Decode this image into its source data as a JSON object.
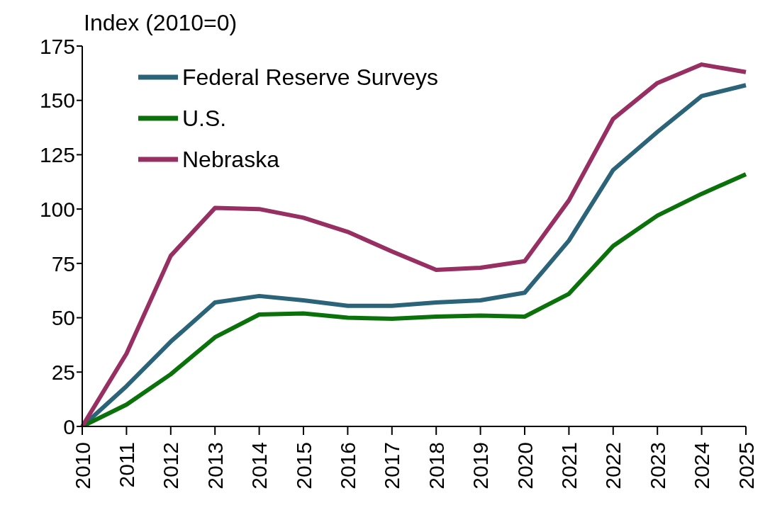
{
  "chart_data": {
    "type": "line",
    "ylabel": "Index (2010=0)",
    "categories": [
      "2010",
      "2011",
      "2012",
      "2013",
      "2014",
      "2015",
      "2016",
      "2017",
      "2018",
      "2019",
      "2020",
      "2021",
      "2022",
      "2023",
      "2024",
      "2025"
    ],
    "series": [
      {
        "name": "Federal Reserve Surveys",
        "color": "#2b6379",
        "values": [
          0,
          18.5,
          39,
          57,
          60,
          58,
          55.5,
          55.5,
          57,
          58,
          61.5,
          85.5,
          118,
          135.5,
          152,
          157
        ]
      },
      {
        "name": "U.S.",
        "color": "#0b720b",
        "values": [
          0,
          10,
          24,
          41,
          51.5,
          52,
          50,
          49.5,
          50.5,
          51,
          50.5,
          61,
          83,
          97,
          107,
          116
        ]
      },
      {
        "name": "Nebraska",
        "color": "#982f62",
        "values": [
          0,
          33.5,
          78.5,
          100.5,
          100,
          96,
          89.5,
          80.5,
          72,
          73,
          76,
          104,
          141.5,
          158,
          166.5,
          163
        ]
      }
    ],
    "ylim": [
      0,
      175
    ],
    "yticks": [
      0,
      25,
      50,
      75,
      100,
      125,
      150,
      175
    ],
    "grid": false,
    "legend": "top left",
    "marker": "none",
    "line_style": "solid"
  }
}
